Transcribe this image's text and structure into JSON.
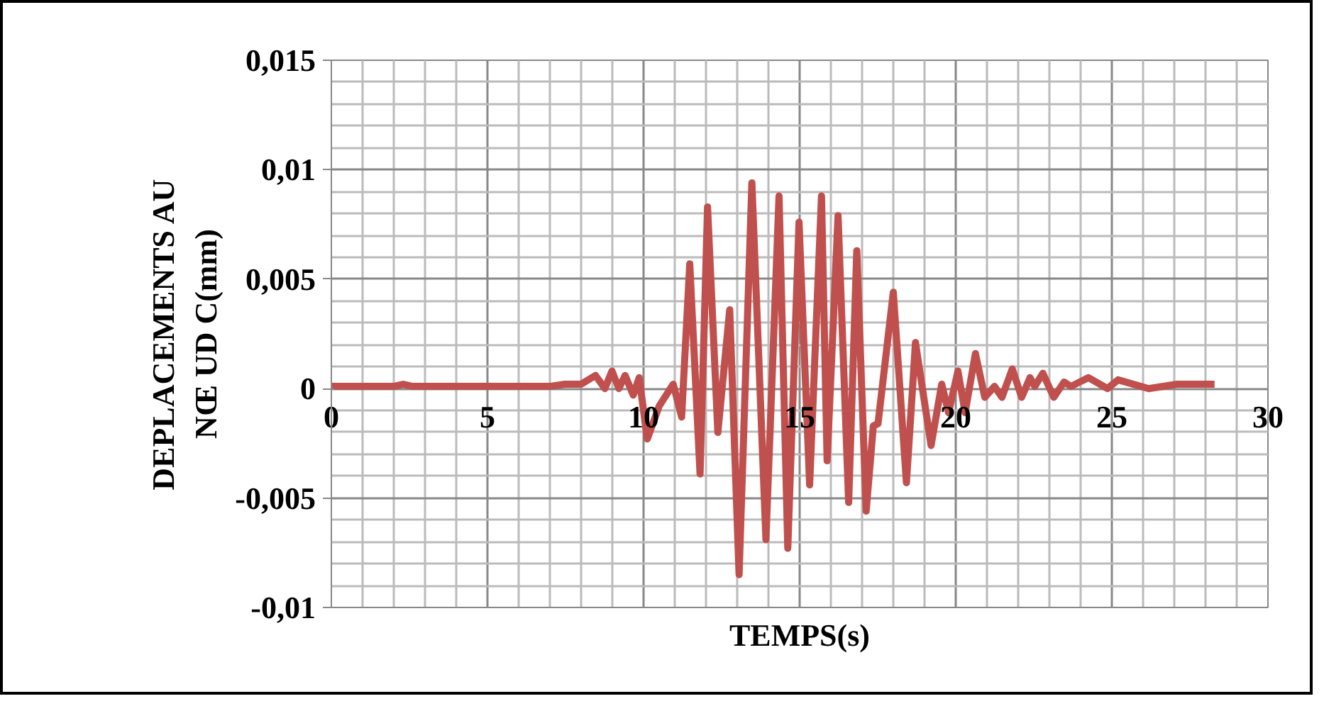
{
  "chart_data": {
    "type": "line",
    "xlabel": "TEMPS(s)",
    "ylabel": "DEPLACEMENTS AU NŒ UD C(mm)",
    "x": [
      0,
      2.0,
      2.3,
      2.6,
      7.0,
      7.48,
      8.0,
      8.46,
      8.76,
      8.99,
      9.21,
      9.41,
      9.67,
      9.86,
      10.12,
      10.5,
      10.95,
      11.22,
      11.48,
      11.81,
      12.05,
      12.38,
      12.76,
      13.06,
      13.47,
      13.92,
      14.34,
      14.62,
      14.98,
      15.32,
      15.7,
      15.88,
      16.23,
      16.57,
      16.83,
      17.13,
      17.36,
      17.51,
      18.0,
      18.42,
      18.71,
      19.21,
      19.55,
      19.77,
      20.07,
      20.3,
      20.63,
      20.93,
      21.24,
      21.48,
      21.81,
      22.11,
      22.38,
      22.53,
      22.79,
      23.14,
      23.47,
      23.69,
      24.25,
      24.86,
      25.2,
      26.18,
      27.09,
      28.29
    ],
    "series": [
      {
        "color": "#c0504d",
        "values": [
          0.0001,
          0.0001,
          0.0002,
          0.0001,
          0.0001,
          0.0002,
          0.0002,
          0.0006,
          0,
          0.0008,
          0,
          0.0006,
          -0.0003,
          0.0005,
          -0.0023,
          -0.0008,
          0.0002,
          -0.0013,
          0.0057,
          -0.0039,
          0.0083,
          -0.002,
          0.0036,
          -0.0085,
          0.0094,
          -0.0069,
          0.0088,
          -0.0073,
          0.0076,
          -0.0044,
          0.0088,
          -0.0033,
          0.0079,
          -0.0052,
          0.0063,
          -0.0056,
          -0.0017,
          -0.0016,
          0.0044,
          -0.0043,
          0.0021,
          -0.0026,
          0.0002,
          -0.0011,
          0.0008,
          -0.0011,
          0.0016,
          -0.0004,
          0.0001,
          -0.0004,
          0.0009,
          -0.0004,
          0.0005,
          0.0001,
          0.0007,
          -0.0004,
          0.0003,
          0.0001,
          0.0005,
          0,
          0.0004,
          0,
          0.0002,
          0.0002
        ]
      }
    ],
    "xlim": [
      0,
      30
    ],
    "ylim": [
      -0.01,
      0.015
    ],
    "xticks": [
      0,
      5,
      10,
      15,
      20,
      25,
      30
    ],
    "yticks": [
      {
        "value": -0.01,
        "label": "-0,01"
      },
      {
        "value": -0.005,
        "label": "-0,005"
      },
      {
        "value": 0,
        "label": "0"
      },
      {
        "value": 0.005,
        "label": "0,005"
      },
      {
        "value": 0.01,
        "label": "0,01"
      },
      {
        "value": 0.015,
        "label": "0,015"
      }
    ],
    "grid": true,
    "line_style": "solid",
    "marker": "none"
  }
}
